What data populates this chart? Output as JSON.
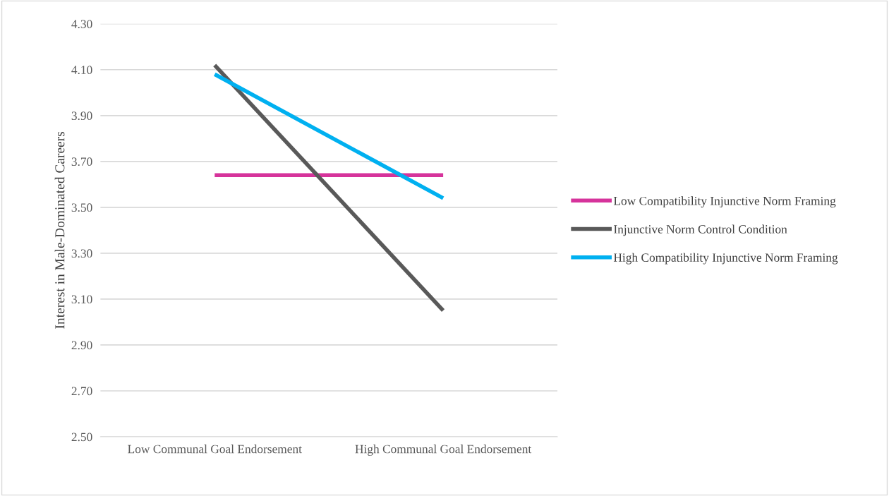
{
  "chart_data": {
    "type": "line",
    "ylabel": "Interest in Male-Dominated Careers",
    "categories": [
      "Low Communal Goal Endorsement",
      "High Communal Goal Endorsement"
    ],
    "series": [
      {
        "name": "Low Compatibility Injunctive Norm Framing",
        "color": "#d6339b",
        "values": [
          3.64,
          3.64
        ]
      },
      {
        "name": "Injunctive Norm Control Condition",
        "color": "#595959",
        "values": [
          4.12,
          3.05
        ]
      },
      {
        "name": "High Compatibility Injunctive Norm Framing",
        "color": "#00b0f0",
        "values": [
          4.08,
          3.54
        ]
      }
    ],
    "ylim": [
      2.5,
      4.3
    ],
    "yticks": [
      {
        "value": 2.5,
        "label": "2.50"
      },
      {
        "value": 2.7,
        "label": "2.70"
      },
      {
        "value": 2.9,
        "label": "2.90"
      },
      {
        "value": 3.1,
        "label": "3.10"
      },
      {
        "value": 3.3,
        "label": "3.30"
      },
      {
        "value": 3.5,
        "label": "3.50"
      },
      {
        "value": 3.7,
        "label": "3.70"
      },
      {
        "value": 3.9,
        "label": "3.90"
      },
      {
        "value": 4.1,
        "label": "4.10"
      },
      {
        "value": 4.3,
        "label": "4.30"
      }
    ],
    "grid": "y",
    "legend": "right",
    "marker": "none",
    "line_style": "solid"
  }
}
